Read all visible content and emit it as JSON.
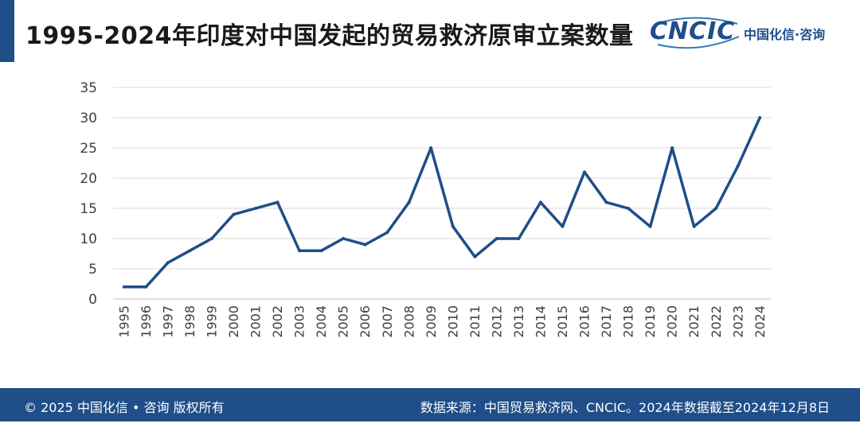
{
  "header": {
    "title": "1995-2024年印度对中国发起的贸易救济原审立案数量",
    "logo_text": "CNCIC",
    "logo_sub": "中国化信·咨询"
  },
  "footer": {
    "copyright": "© 2025 中国化信 • 咨询 版权所有",
    "source": "数据来源：中国贸易救济网、CNCIC。2024年数据截至2024年12月8日"
  },
  "colors": {
    "brand": "#1f4e89",
    "line": "#1f4e89",
    "grid": "#d9d9d9"
  },
  "chart_data": {
    "type": "line",
    "title": "1995-2024年印度对中国发起的贸易救济原审立案数量",
    "xlabel": "",
    "ylabel": "",
    "ylim": [
      0,
      35
    ],
    "yticks": [
      0,
      5,
      10,
      15,
      20,
      25,
      30,
      35
    ],
    "grid": true,
    "legend": "none",
    "categories": [
      "1995",
      "1996",
      "1997",
      "1998",
      "1999",
      "2000",
      "2001",
      "2002",
      "2003",
      "2004",
      "2005",
      "2006",
      "2007",
      "2008",
      "2009",
      "2010",
      "2011",
      "2012",
      "2013",
      "2014",
      "2015",
      "2016",
      "2017",
      "2018",
      "2019",
      "2020",
      "2021",
      "2022",
      "2023",
      "2024"
    ],
    "series": [
      {
        "values": [
          2,
          2,
          6,
          8,
          10,
          14,
          15,
          16,
          8,
          8,
          10,
          9,
          11,
          16,
          25,
          12,
          7,
          10,
          10,
          16,
          12,
          21,
          16,
          15,
          12,
          25,
          12,
          15,
          22,
          30
        ]
      }
    ]
  }
}
